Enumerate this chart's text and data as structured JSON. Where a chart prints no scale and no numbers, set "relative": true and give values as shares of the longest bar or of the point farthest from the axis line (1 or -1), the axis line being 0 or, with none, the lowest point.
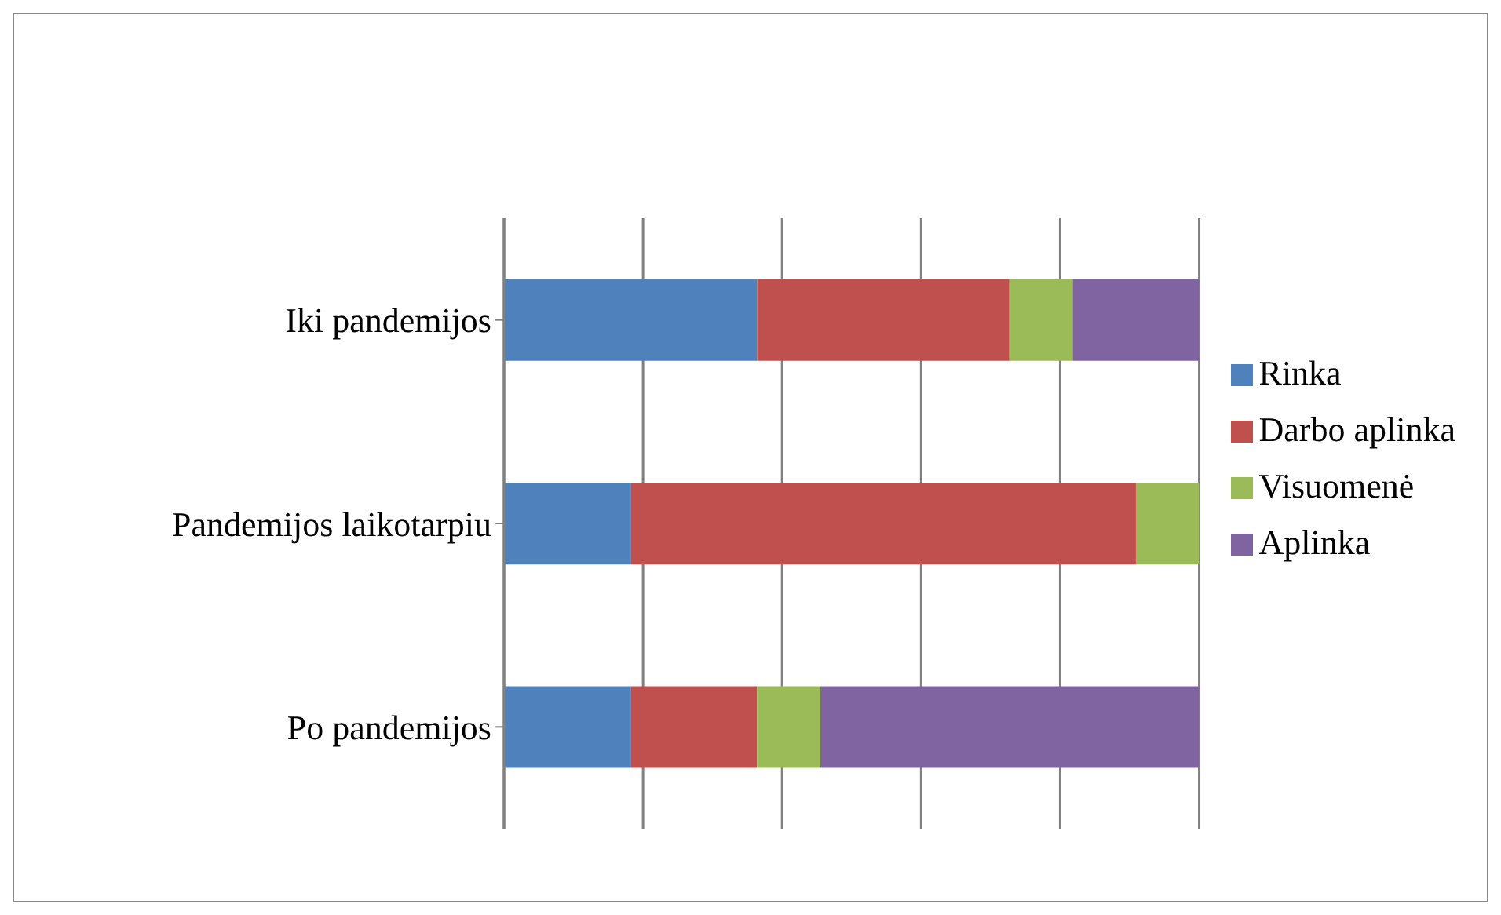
{
  "chart_data": {
    "type": "bar",
    "orientation": "horizontal",
    "stacked": true,
    "relative": true,
    "grid": "x",
    "legend": "right",
    "categories": [
      "Iki pandemijos",
      "Pandemijos laikotarpiu",
      "Po pandemijos"
    ],
    "series": [
      {
        "name": "Rinka",
        "color": "#4f81bd",
        "values": [
          0.364,
          0.182,
          0.182
        ]
      },
      {
        "name": "Darbo aplinka",
        "color": "#c0504d",
        "values": [
          0.363,
          0.727,
          0.182
        ]
      },
      {
        "name": "Visuomenė",
        "color": "#9bbb59",
        "values": [
          0.091,
          0.091,
          0.091
        ]
      },
      {
        "name": "Aplinka",
        "color": "#8064a2",
        "values": [
          0.182,
          0,
          0.545
        ]
      }
    ]
  }
}
